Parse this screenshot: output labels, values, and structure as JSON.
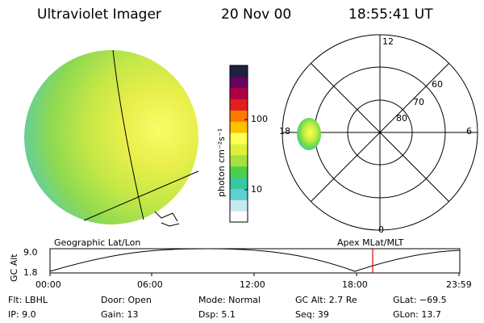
{
  "header": {
    "title": "Ultraviolet Imager",
    "date": "20 Nov 00",
    "time": "18:55:41 UT"
  },
  "colorbar": {
    "unit_label": "photon cm⁻²s⁻¹",
    "tick_100": "100",
    "tick_10": "10",
    "colors": [
      "#ffffff",
      "#c8e8f0",
      "#5ad2d2",
      "#38c8a0",
      "#4cd04c",
      "#a6e03a",
      "#e0f03a",
      "#ffff55",
      "#ffc000",
      "#ff7800",
      "#e02020",
      "#b00040",
      "#6a0060",
      "#202040"
    ]
  },
  "polar": {
    "labels": {
      "mlt_12": "12",
      "mlt_6": "6",
      "mlt_18": "18",
      "mlt_0": "0",
      "lat_80": "80",
      "lat_70": "70",
      "lat_60": "60"
    }
  },
  "timeline": {
    "left_title": "Geographic Lat/Lon",
    "right_title": "Apex MLat/MLT",
    "axis_label": "GC Alt",
    "y_top": "9.0",
    "y_bottom": "1.8",
    "ticks": [
      "00:00",
      "06:00",
      "12:00",
      "18:00",
      "23:59"
    ],
    "current_marker_color": "#e00000"
  },
  "info": {
    "flt": "Flt: LBHL",
    "ip": "IP:  9.0",
    "door": "Door: Open",
    "gain": "Gain: 13",
    "mode": "Mode: Normal",
    "dsp": "Dsp:    5.1",
    "gcalt": "GC Alt: 2.7 Re",
    "seq": "Seq: 39",
    "glat": "GLat: −69.5",
    "glon": "GLon:  13.7"
  }
}
